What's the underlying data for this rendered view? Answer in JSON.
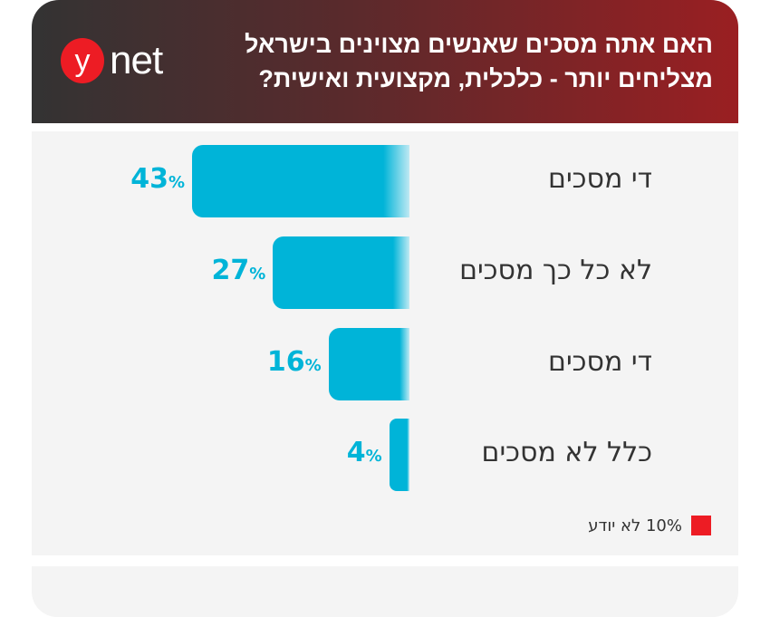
{
  "header": {
    "title": "האם אתה מסכים שאנשים מצוינים בישראל מצליחים יותר - כלכלית, מקצועית ואישית?",
    "logo_y": "y",
    "logo_net": "net"
  },
  "chart_data": {
    "type": "bar",
    "orientation": "horizontal",
    "categories": [
      "די מסכים",
      "לא כל כך מסכים",
      "די מסכים",
      "כלל לא מסכים"
    ],
    "values": [
      43,
      27,
      16,
      4
    ],
    "value_labels": [
      "43",
      "27",
      "16",
      "4"
    ],
    "unit": "%",
    "other": {
      "label": "10% לא יודע",
      "value": 10
    },
    "colors": {
      "bar": "#00b4d8",
      "other": "#ed1c24"
    }
  }
}
